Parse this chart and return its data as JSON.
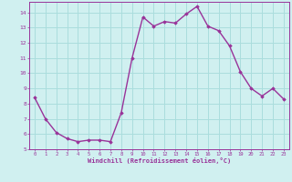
{
  "x": [
    0,
    1,
    2,
    3,
    4,
    5,
    6,
    7,
    8,
    9,
    10,
    11,
    12,
    13,
    14,
    15,
    16,
    17,
    18,
    19,
    20,
    21,
    22,
    23
  ],
  "y": [
    8.4,
    7.0,
    6.1,
    5.7,
    5.5,
    5.6,
    5.6,
    5.5,
    7.4,
    11.0,
    13.7,
    13.1,
    13.4,
    13.3,
    13.9,
    14.4,
    13.1,
    12.8,
    11.8,
    10.1,
    9.0,
    8.5,
    9.0,
    8.3
  ],
  "line_color": "#993399",
  "marker": "D",
  "marker_size": 1.8,
  "bg_color": "#d0f0f0",
  "grid_color": "#aadddd",
  "xlabel": "Windchill (Refroidissement éolien,°C)",
  "xlabel_color": "#993399",
  "tick_color": "#993399",
  "ylim": [
    5,
    14.7
  ],
  "xlim": [
    -0.5,
    23.5
  ],
  "yticks": [
    5,
    6,
    7,
    8,
    9,
    10,
    11,
    12,
    13,
    14
  ],
  "xticks": [
    0,
    1,
    2,
    3,
    4,
    5,
    6,
    7,
    8,
    9,
    10,
    11,
    12,
    13,
    14,
    15,
    16,
    17,
    18,
    19,
    20,
    21,
    22,
    23
  ],
  "spine_color": "#993399",
  "line_width": 1.0
}
